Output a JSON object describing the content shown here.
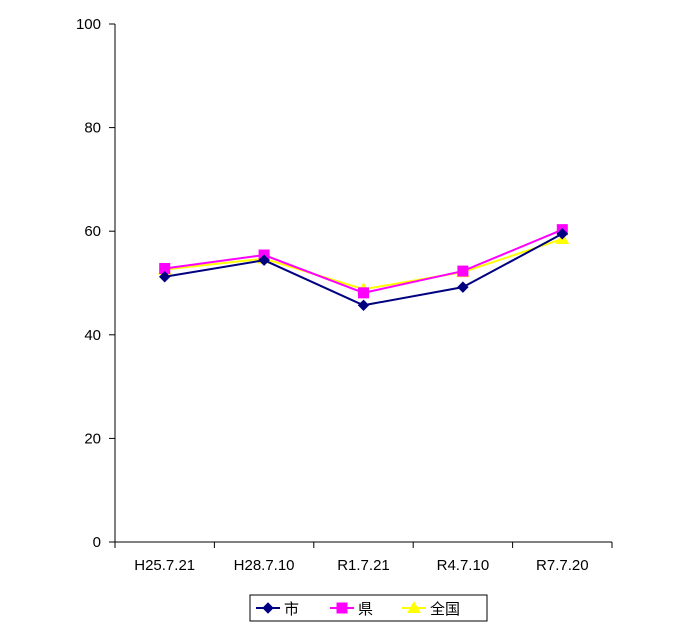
{
  "chart_data": {
    "type": "line",
    "categories": [
      "H25.7.21",
      "H28.7.10",
      "R1.7.21",
      "R4.7.10",
      "R7.7.20"
    ],
    "series": [
      {
        "name": "市",
        "values": [
          51.2,
          54.4,
          45.7,
          49.2,
          59.5
        ],
        "color": "#000080",
        "marker": "diamond"
      },
      {
        "name": "県",
        "values": [
          52.8,
          55.4,
          48.1,
          52.3,
          60.3
        ],
        "color": "#ff00ff",
        "marker": "square"
      },
      {
        "name": "全国",
        "values": [
          52.6,
          54.7,
          48.8,
          52.1,
          58.5
        ],
        "color": "#ffff00",
        "marker": "triangle"
      }
    ],
    "yticks": [
      0,
      20,
      40,
      60,
      80,
      100
    ],
    "ylim": [
      0,
      100
    ],
    "grid": false,
    "legend_position": "bottom"
  }
}
